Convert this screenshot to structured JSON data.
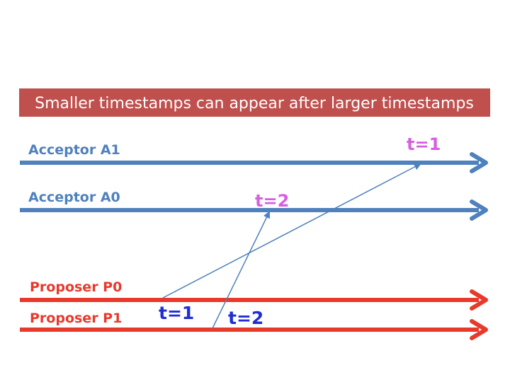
{
  "banner": {
    "text": "Smaller timestamps can appear after larger timestamps",
    "color": "#c0504d"
  },
  "colors": {
    "acceptor": "#4f81bd",
    "proposer": "#e8392b",
    "message": "#4f81bd",
    "sent_timestamp": "#1f2fd4",
    "received_timestamp": "#d65ee0"
  },
  "lanes": {
    "acceptor_a1": {
      "label": "Acceptor A1"
    },
    "acceptor_a0": {
      "label": "Acceptor A0"
    },
    "proposer_p0": {
      "label": "Proposer P0"
    },
    "proposer_p1": {
      "label": "Proposer P1"
    }
  },
  "messages": {
    "p0_to_a1": {
      "from": "Proposer P0",
      "to": "Acceptor A1",
      "sent_label": "t=1",
      "received_label": "t=1"
    },
    "p1_to_a0": {
      "from": "Proposer P1",
      "to": "Acceptor A0",
      "sent_label": "t=2",
      "received_label": "t=2"
    }
  }
}
